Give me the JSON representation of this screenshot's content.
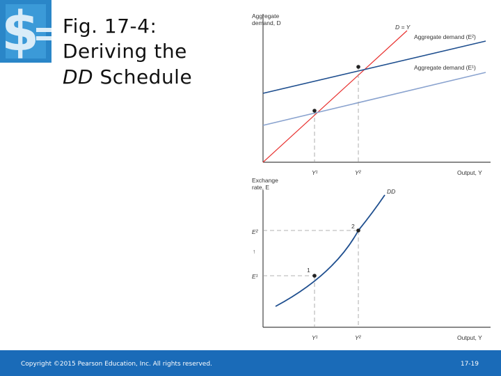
{
  "title": {
    "line1": "Fig. 17-4:",
    "line2": "Deriving the",
    "line3_italic": "DD",
    "line3_rest": " Schedule"
  },
  "top_panel": {
    "y_axis_label_1": "Aggregate",
    "y_axis_label_2": "demand, D",
    "x_axis_label": "Output, Y",
    "line_45": "D = Y",
    "curve_e2": "Aggregate demand (E²)",
    "curve_e1": "Aggregate demand (E¹)",
    "tick_y1": "Y¹",
    "tick_y2": "Y²"
  },
  "bottom_panel": {
    "y_axis_label_1": "Exchange",
    "y_axis_label_2": "rate, E",
    "x_axis_label": "Output, Y",
    "curve_label": "DD",
    "tick_e2": "E²",
    "tick_e1": "E¹",
    "arrow": "↑",
    "point_1": "1",
    "point_2": "2",
    "tick_y1": "Y¹",
    "tick_y2": "Y²"
  },
  "colors": {
    "line_45": "#e8312f",
    "curve_e2": "#1f4f8f",
    "curve_e1": "#8aa3cf",
    "dd": "#1f4f8f",
    "footer": "#1a6bb8"
  },
  "footer": {
    "copyright": "Copyright ©2015 Pearson Education, Inc. All rights reserved.",
    "page": "17-19"
  }
}
